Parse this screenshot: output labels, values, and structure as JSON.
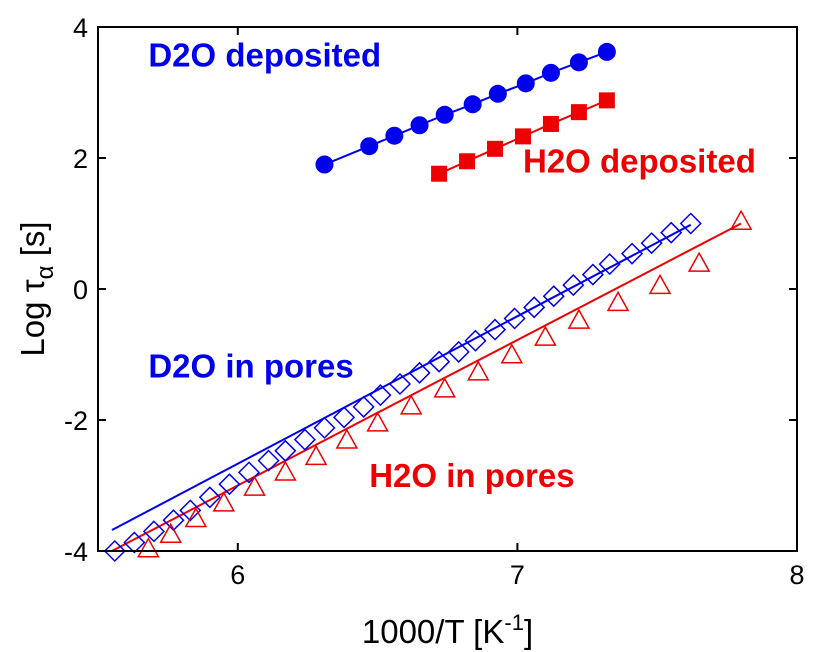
{
  "chart_data": {
    "type": "scatter",
    "xlabel": "1000/T  [K",
    "xlabel_sup": "-1",
    "xlabel_close": "]",
    "ylabel": "Log τ",
    "ylabel_sub": "α",
    "ylabel_unit": " [s]",
    "xlim": [
      5.5,
      8
    ],
    "ylim": [
      -4,
      4
    ],
    "x_ticks": [
      6,
      7,
      8
    ],
    "y_ticks": [
      -4,
      -2,
      0,
      2,
      4
    ],
    "x_tick_labels": [
      "6",
      "7",
      "8"
    ],
    "y_tick_labels": [
      "-4",
      "-2",
      "0",
      "2",
      "4"
    ],
    "grid": false,
    "series": [
      {
        "name": "D2O deposited",
        "color": "#0000ee",
        "marker": "filled-circle",
        "connect": "polyline",
        "x": [
          6.31,
          6.47,
          6.56,
          6.65,
          6.74,
          6.84,
          6.93,
          7.03,
          7.12,
          7.22,
          7.32
        ],
        "y": [
          1.9,
          2.18,
          2.34,
          2.5,
          2.66,
          2.82,
          2.98,
          3.14,
          3.3,
          3.46,
          3.62
        ]
      },
      {
        "name": "H2O deposited",
        "color": "#ee0000",
        "marker": "filled-square",
        "connect": "polyline",
        "x": [
          6.72,
          6.82,
          6.92,
          7.02,
          7.12,
          7.22,
          7.32
        ],
        "y": [
          1.76,
          1.95,
          2.14,
          2.33,
          2.52,
          2.7,
          2.88
        ]
      },
      {
        "name": "D2O in pores",
        "color": "#0000ee",
        "marker": "open-diamond",
        "connect": "fit",
        "fit_line": {
          "x": [
            5.55,
            7.62
          ],
          "y": [
            -3.68,
            0.98
          ]
        },
        "x": [
          5.56,
          5.63,
          5.7,
          5.77,
          5.83,
          5.9,
          5.97,
          6.04,
          6.11,
          6.17,
          6.24,
          6.31,
          6.38,
          6.45,
          6.51,
          6.58,
          6.65,
          6.72,
          6.79,
          6.85,
          6.92,
          6.99,
          7.06,
          7.13,
          7.2,
          7.27,
          7.33,
          7.41,
          7.48,
          7.55,
          7.62
        ],
        "y": [
          -4.0,
          -3.87,
          -3.7,
          -3.53,
          -3.38,
          -3.18,
          -2.98,
          -2.8,
          -2.62,
          -2.47,
          -2.3,
          -2.12,
          -1.96,
          -1.8,
          -1.62,
          -1.45,
          -1.28,
          -1.11,
          -0.96,
          -0.79,
          -0.62,
          -0.45,
          -0.28,
          -0.11,
          0.06,
          0.22,
          0.38,
          0.54,
          0.7,
          0.86,
          1.0
        ]
      },
      {
        "name": "H2O in pores",
        "color": "#ee0000",
        "marker": "open-triangle",
        "connect": "fit",
        "fit_line": {
          "x": [
            5.55,
            7.8
          ],
          "y": [
            -4.0,
            1.0
          ]
        },
        "x": [
          5.68,
          5.76,
          5.85,
          5.95,
          6.06,
          6.17,
          6.28,
          6.39,
          6.5,
          6.62,
          6.74,
          6.86,
          6.98,
          7.1,
          7.22,
          7.36,
          7.51,
          7.65,
          7.8
        ],
        "y": [
          -3.98,
          -3.76,
          -3.52,
          -3.28,
          -3.04,
          -2.81,
          -2.57,
          -2.32,
          -2.06,
          -1.8,
          -1.54,
          -1.28,
          -1.02,
          -0.75,
          -0.49,
          -0.22,
          0.04,
          0.38,
          1.02
        ]
      }
    ],
    "annotations": [
      {
        "text": "D2O deposited",
        "color": "#0000ee",
        "x": 5.68,
        "y": 3.4
      },
      {
        "text": "H2O deposited",
        "color": "#ee0000",
        "x": 7.02,
        "y": 1.78
      },
      {
        "text": "D2O in pores",
        "color": "#0000ee",
        "x": 5.68,
        "y": -1.35
      },
      {
        "text": "H2O in pores",
        "color": "#ee0000",
        "x": 6.47,
        "y": -3.02
      }
    ]
  }
}
